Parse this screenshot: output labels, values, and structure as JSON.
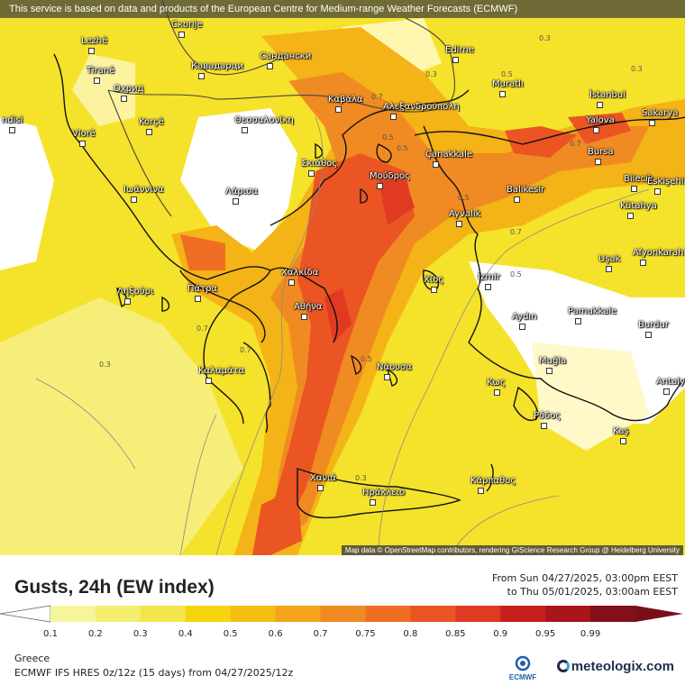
{
  "banner": "This service is based on data and products of the European Centre for Medium-range Weather Forecasts (ECMWF)",
  "attribution": "Map data © OpenStreetMap contributors, rendering GIScience Research Group @ Heidelberg University",
  "title": "Gusts, 24h (EW index)",
  "range_from": "From Sun 04/27/2025, 03:00pm EEST",
  "range_to": "to Thu 05/01/2025, 03:00am EEST",
  "region": "Greece",
  "model": "ECMWF IFS HRES 0z/12z (15 days) from 04/27/2025/12z",
  "brand": "meteologix.com",
  "ecmwf_logo_text": "ECMWF",
  "legend": {
    "ticks": [
      "0.1",
      "0.2",
      "0.3",
      "0.4",
      "0.5",
      "0.6",
      "0.7",
      "0.75",
      "0.8",
      "0.85",
      "0.9",
      "0.95",
      "0.99"
    ],
    "colors": [
      "#f7f59b",
      "#f3ee6e",
      "#f2e64a",
      "#f5d60e",
      "#f5bd12",
      "#f4a51b",
      "#f08a22",
      "#ee6f23",
      "#ea5523",
      "#e03a22",
      "#c81e1e",
      "#a8151a",
      "#84101a"
    ]
  },
  "cities": [
    {
      "name": "Lezhë"
    },
    {
      "name": "Tiranë"
    },
    {
      "name": "Скопје"
    },
    {
      "name": "Кавадарци"
    },
    {
      "name": "Сандански"
    },
    {
      "name": "Edirne"
    },
    {
      "name": "Muratlı"
    },
    {
      "name": "İstanbul"
    },
    {
      "name": "Sakarya"
    },
    {
      "name": "Yalova"
    },
    {
      "name": "Охрид"
    },
    {
      "name": "Korçë"
    },
    {
      "name": "Vlorë"
    },
    {
      "name": "Καβάλα"
    },
    {
      "name": "Αλεξανδρούπολη"
    },
    {
      "name": "Θεσσαλονίκη"
    },
    {
      "name": "Çanakkale"
    },
    {
      "name": "Bursa"
    },
    {
      "name": "Bilecik"
    },
    {
      "name": "Eskişehir"
    },
    {
      "name": "Σκιάθος"
    },
    {
      "name": "Μούδρος"
    },
    {
      "name": "Ιωάννινα"
    },
    {
      "name": "Λάρισα"
    },
    {
      "name": "Balıkesir"
    },
    {
      "name": "Ayvalık"
    },
    {
      "name": "Kütahya"
    },
    {
      "name": "Afyonkarahisar"
    },
    {
      "name": "Χαλκίδα"
    },
    {
      "name": "Uşak"
    },
    {
      "name": "Ληξούρι"
    },
    {
      "name": "Πάτρα"
    },
    {
      "name": "Χίος"
    },
    {
      "name": "İzmir"
    },
    {
      "name": "Αθήνα"
    },
    {
      "name": "Aydın"
    },
    {
      "name": "Pamukkale"
    },
    {
      "name": "Burdur"
    },
    {
      "name": "Καλαμάτα"
    },
    {
      "name": "Νάουσα"
    },
    {
      "name": "Muğla"
    },
    {
      "name": "Κως"
    },
    {
      "name": "Antalya"
    },
    {
      "name": "Ρόδος"
    },
    {
      "name": "Kaş"
    },
    {
      "name": "Χανιά"
    },
    {
      "name": "Ηράκλειο"
    },
    {
      "name": "Κάρπαθος"
    },
    {
      "name": "ndisi"
    }
  ],
  "contour_labels": [
    "0.3",
    "0.7",
    "0.5",
    "0.5",
    "0.3",
    "0.7",
    "0.5",
    "0.7",
    "0.5",
    "0.7",
    "0.3",
    "0.5",
    "0.7",
    "0.3",
    "0.5",
    "0.3"
  ]
}
